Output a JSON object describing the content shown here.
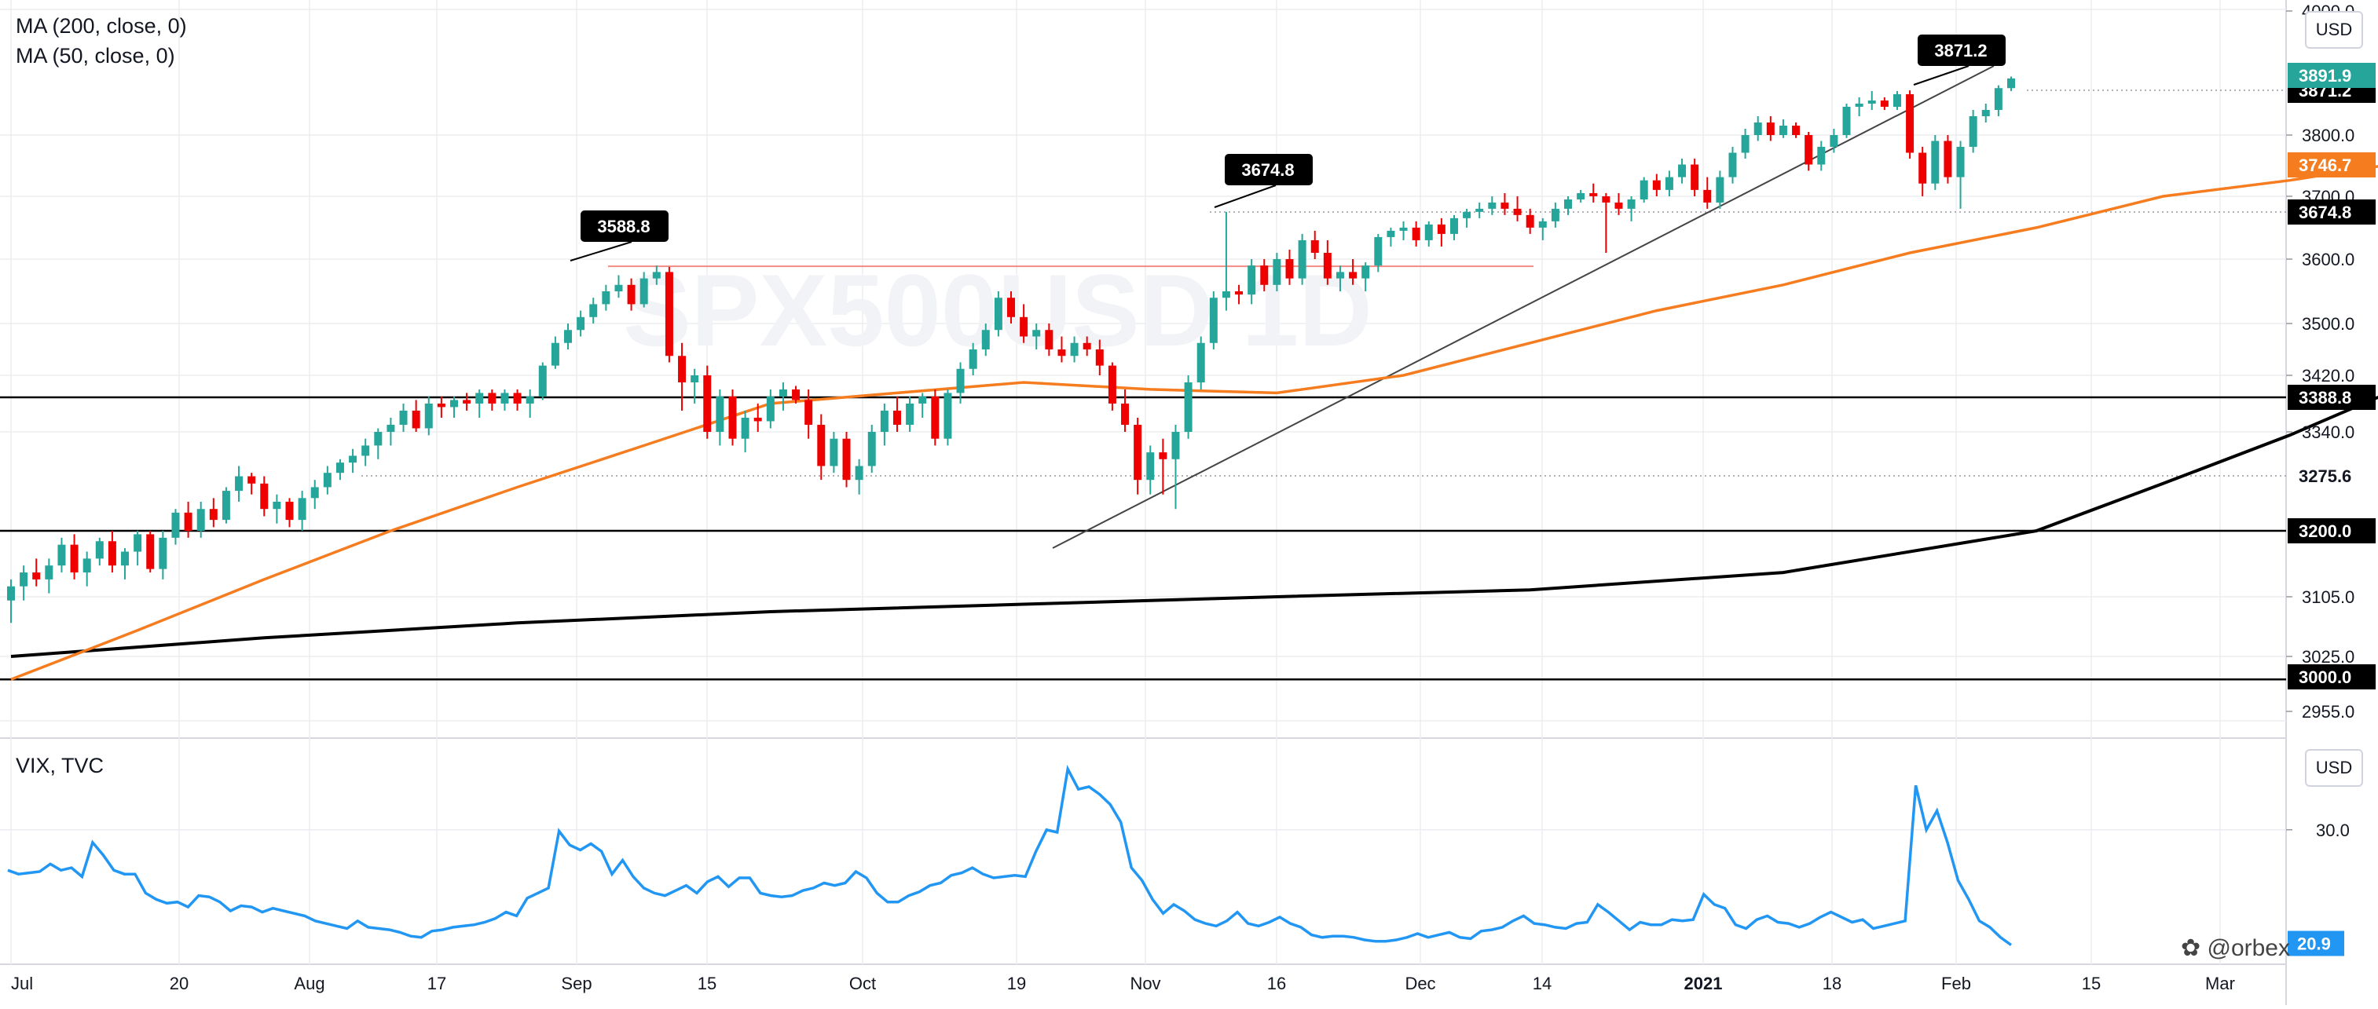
{
  "legend": {
    "ma200": "MA (200, close, 0)",
    "ma50": "MA (50, close, 0)",
    "vix": "VIX, TVC"
  },
  "currency": "USD",
  "watermark": "@orbex",
  "colors": {
    "up": "#26a69a",
    "down": "#ef0000",
    "ma50": "#f57c1f",
    "ma200": "#000000",
    "vix": "#2196f3",
    "grid": "#ecedf1"
  },
  "chart_data": [
    {
      "type": "candlestick",
      "name": "main",
      "x_ticks": [
        "Jul",
        "20",
        "Aug",
        "17",
        "Sep",
        "15",
        "Oct",
        "19",
        "Nov",
        "16",
        "Dec",
        "14",
        "2021",
        "18",
        "Feb",
        "15",
        "Mar"
      ],
      "y_ticks": [
        "4000.0",
        "3871.2",
        "3800.0",
        "3700.0",
        "3600.0",
        "3500.0",
        "3420.0",
        "3340.0",
        "3275.6",
        "3200.0",
        "3105.0",
        "3025.0",
        "2955.0"
      ],
      "ylim": [
        2920,
        4010
      ],
      "ohlc": [
        [
          3100,
          3130,
          3070,
          3120
        ],
        [
          3120,
          3150,
          3100,
          3140
        ],
        [
          3140,
          3160,
          3120,
          3130
        ],
        [
          3130,
          3160,
          3110,
          3150
        ],
        [
          3150,
          3190,
          3140,
          3180
        ],
        [
          3180,
          3195,
          3130,
          3140
        ],
        [
          3140,
          3170,
          3120,
          3160
        ],
        [
          3160,
          3190,
          3150,
          3185
        ],
        [
          3185,
          3200,
          3140,
          3150
        ],
        [
          3150,
          3175,
          3130,
          3170
        ],
        [
          3170,
          3200,
          3150,
          3195
        ],
        [
          3195,
          3200,
          3140,
          3145
        ],
        [
          3145,
          3200,
          3130,
          3190
        ],
        [
          3190,
          3230,
          3180,
          3225
        ],
        [
          3225,
          3240,
          3190,
          3200
        ],
        [
          3200,
          3240,
          3190,
          3230
        ],
        [
          3230,
          3245,
          3205,
          3215
        ],
        [
          3215,
          3260,
          3210,
          3255
        ],
        [
          3255,
          3290,
          3240,
          3275
        ],
        [
          3275,
          3280,
          3250,
          3265
        ],
        [
          3265,
          3275,
          3220,
          3230
        ],
        [
          3230,
          3250,
          3210,
          3240
        ],
        [
          3240,
          3245,
          3205,
          3215
        ],
        [
          3215,
          3255,
          3200,
          3245
        ],
        [
          3245,
          3270,
          3230,
          3260
        ],
        [
          3260,
          3290,
          3250,
          3280
        ],
        [
          3280,
          3300,
          3270,
          3295
        ],
        [
          3295,
          3315,
          3280,
          3305
        ],
        [
          3305,
          3330,
          3290,
          3320
        ],
        [
          3320,
          3345,
          3300,
          3340
        ],
        [
          3340,
          3360,
          3320,
          3350
        ],
        [
          3350,
          3380,
          3340,
          3370
        ],
        [
          3370,
          3385,
          3340,
          3345
        ],
        [
          3345,
          3390,
          3335,
          3380
        ],
        [
          3380,
          3390,
          3360,
          3375
        ],
        [
          3375,
          3390,
          3360,
          3385
        ],
        [
          3385,
          3395,
          3370,
          3380
        ],
        [
          3380,
          3400,
          3360,
          3395
        ],
        [
          3395,
          3400,
          3370,
          3380
        ],
        [
          3380,
          3400,
          3370,
          3395
        ],
        [
          3395,
          3400,
          3370,
          3380
        ],
        [
          3380,
          3400,
          3360,
          3390
        ],
        [
          3390,
          3440,
          3385,
          3435
        ],
        [
          3435,
          3480,
          3430,
          3470
        ],
        [
          3470,
          3500,
          3460,
          3490
        ],
        [
          3490,
          3520,
          3480,
          3510
        ],
        [
          3510,
          3540,
          3500,
          3530
        ],
        [
          3530,
          3560,
          3520,
          3550
        ],
        [
          3550,
          3575,
          3540,
          3560
        ],
        [
          3560,
          3570,
          3520,
          3530
        ],
        [
          3530,
          3580,
          3525,
          3570
        ],
        [
          3570,
          3590,
          3560,
          3580
        ],
        [
          3580,
          3588,
          3440,
          3450
        ],
        [
          3450,
          3470,
          3370,
          3410
        ],
        [
          3410,
          3430,
          3380,
          3420
        ],
        [
          3420,
          3435,
          3330,
          3340
        ],
        [
          3340,
          3400,
          3320,
          3390
        ],
        [
          3390,
          3400,
          3320,
          3330
        ],
        [
          3330,
          3370,
          3310,
          3360
        ],
        [
          3360,
          3380,
          3340,
          3355
        ],
        [
          3355,
          3400,
          3345,
          3390
        ],
        [
          3390,
          3410,
          3370,
          3400
        ],
        [
          3400,
          3405,
          3380,
          3385
        ],
        [
          3385,
          3400,
          3330,
          3350
        ],
        [
          3350,
          3365,
          3270,
          3290
        ],
        [
          3290,
          3340,
          3280,
          3330
        ],
        [
          3330,
          3340,
          3260,
          3270
        ],
        [
          3270,
          3300,
          3250,
          3290
        ],
        [
          3290,
          3350,
          3280,
          3340
        ],
        [
          3340,
          3380,
          3320,
          3370
        ],
        [
          3370,
          3390,
          3340,
          3350
        ],
        [
          3350,
          3390,
          3340,
          3380
        ],
        [
          3380,
          3395,
          3360,
          3390
        ],
        [
          3390,
          3400,
          3320,
          3330
        ],
        [
          3330,
          3400,
          3320,
          3395
        ],
        [
          3395,
          3440,
          3380,
          3430
        ],
        [
          3430,
          3470,
          3420,
          3460
        ],
        [
          3460,
          3500,
          3450,
          3490
        ],
        [
          3490,
          3550,
          3480,
          3540
        ],
        [
          3540,
          3550,
          3500,
          3510
        ],
        [
          3510,
          3530,
          3470,
          3480
        ],
        [
          3480,
          3500,
          3460,
          3490
        ],
        [
          3490,
          3500,
          3450,
          3460
        ],
        [
          3460,
          3480,
          3440,
          3450
        ],
        [
          3450,
          3480,
          3440,
          3470
        ],
        [
          3470,
          3480,
          3450,
          3460
        ],
        [
          3460,
          3475,
          3420,
          3435
        ],
        [
          3435,
          3440,
          3370,
          3380
        ],
        [
          3380,
          3400,
          3340,
          3350
        ],
        [
          3350,
          3360,
          3250,
          3270
        ],
        [
          3270,
          3320,
          3250,
          3310
        ],
        [
          3310,
          3330,
          3250,
          3300
        ],
        [
          3300,
          3350,
          3230,
          3340
        ],
        [
          3340,
          3420,
          3330,
          3410
        ],
        [
          3410,
          3480,
          3400,
          3470
        ],
        [
          3470,
          3550,
          3460,
          3540
        ],
        [
          3540,
          3675,
          3520,
          3550
        ],
        [
          3550,
          3560,
          3530,
          3545
        ],
        [
          3545,
          3600,
          3530,
          3590
        ],
        [
          3590,
          3600,
          3550,
          3560
        ],
        [
          3560,
          3610,
          3550,
          3600
        ],
        [
          3600,
          3615,
          3560,
          3570
        ],
        [
          3570,
          3640,
          3560,
          3630
        ],
        [
          3630,
          3645,
          3600,
          3610
        ],
        [
          3610,
          3630,
          3560,
          3570
        ],
        [
          3570,
          3590,
          3550,
          3580
        ],
        [
          3580,
          3600,
          3560,
          3570
        ],
        [
          3570,
          3595,
          3550,
          3590
        ],
        [
          3590,
          3640,
          3580,
          3635
        ],
        [
          3635,
          3650,
          3620,
          3645
        ],
        [
          3645,
          3660,
          3630,
          3650
        ],
        [
          3650,
          3660,
          3620,
          3630
        ],
        [
          3630,
          3660,
          3620,
          3655
        ],
        [
          3655,
          3665,
          3620,
          3640
        ],
        [
          3640,
          3670,
          3630,
          3665
        ],
        [
          3665,
          3680,
          3650,
          3675
        ],
        [
          3675,
          3690,
          3665,
          3680
        ],
        [
          3680,
          3700,
          3670,
          3690
        ],
        [
          3690,
          3705,
          3670,
          3680
        ],
        [
          3680,
          3700,
          3660,
          3670
        ],
        [
          3670,
          3680,
          3640,
          3650
        ],
        [
          3650,
          3665,
          3630,
          3660
        ],
        [
          3660,
          3690,
          3650,
          3680
        ],
        [
          3680,
          3700,
          3670,
          3695
        ],
        [
          3695,
          3710,
          3690,
          3705
        ],
        [
          3705,
          3720,
          3690,
          3700
        ],
        [
          3700,
          3705,
          3610,
          3690
        ],
        [
          3690,
          3705,
          3670,
          3680
        ],
        [
          3680,
          3700,
          3660,
          3695
        ],
        [
          3695,
          3730,
          3690,
          3725
        ],
        [
          3725,
          3735,
          3700,
          3710
        ],
        [
          3710,
          3740,
          3700,
          3730
        ],
        [
          3730,
          3760,
          3720,
          3750
        ],
        [
          3750,
          3760,
          3700,
          3710
        ],
        [
          3710,
          3730,
          3680,
          3690
        ],
        [
          3690,
          3740,
          3680,
          3730
        ],
        [
          3730,
          3780,
          3720,
          3770
        ],
        [
          3770,
          3810,
          3760,
          3800
        ],
        [
          3800,
          3830,
          3790,
          3820
        ],
        [
          3820,
          3830,
          3790,
          3800
        ],
        [
          3800,
          3825,
          3795,
          3815
        ],
        [
          3815,
          3820,
          3795,
          3800
        ],
        [
          3800,
          3805,
          3740,
          3750
        ],
        [
          3750,
          3790,
          3740,
          3780
        ],
        [
          3780,
          3810,
          3770,
          3800
        ],
        [
          3800,
          3850,
          3795,
          3845
        ],
        [
          3845,
          3860,
          3830,
          3850
        ],
        [
          3850,
          3870,
          3840,
          3855
        ],
        [
          3855,
          3860,
          3840,
          3845
        ],
        [
          3845,
          3870,
          3840,
          3865
        ],
        [
          3865,
          3871,
          3760,
          3770
        ],
        [
          3770,
          3780,
          3700,
          3720
        ],
        [
          3720,
          3800,
          3710,
          3790
        ],
        [
          3790,
          3800,
          3720,
          3730
        ],
        [
          3730,
          3790,
          3680,
          3780
        ],
        [
          3780,
          3840,
          3770,
          3830
        ],
        [
          3830,
          3850,
          3820,
          3840
        ],
        [
          3840,
          3880,
          3830,
          3875
        ],
        [
          3875,
          3895,
          3870,
          3892
        ]
      ],
      "ma50_points": [
        [
          0,
          3000
        ],
        [
          10,
          3060
        ],
        [
          20,
          3130
        ],
        [
          30,
          3200
        ],
        [
          40,
          3260
        ],
        [
          50,
          3320
        ],
        [
          60,
          3380
        ],
        [
          70,
          3395
        ],
        [
          80,
          3410
        ],
        [
          90,
          3400
        ],
        [
          100,
          3395
        ],
        [
          110,
          3420
        ],
        [
          120,
          3470
        ],
        [
          130,
          3520
        ],
        [
          140,
          3560
        ],
        [
          150,
          3610
        ],
        [
          160,
          3650
        ],
        [
          170,
          3700
        ],
        [
          180,
          3725
        ],
        [
          187,
          3747
        ]
      ],
      "ma200_points": [
        [
          0,
          3025
        ],
        [
          20,
          3050
        ],
        [
          40,
          3070
        ],
        [
          60,
          3085
        ],
        [
          80,
          3095
        ],
        [
          100,
          3105
        ],
        [
          120,
          3115
        ],
        [
          140,
          3140
        ],
        [
          160,
          3200
        ],
        [
          170,
          3265
        ],
        [
          180,
          3335
        ],
        [
          187,
          3389
        ]
      ],
      "levels": [
        3000.0,
        3200.0,
        3388.8
      ],
      "dotted_levels": [
        3871.2,
        3674.8,
        3275.6
      ],
      "annotations": [
        "3588.8",
        "3674.8",
        "3871.2"
      ],
      "price_labels": {
        "last": "3891.9",
        "ma50": "3746.7",
        "l3674": "3674.8",
        "l3871": "3871.2",
        "l3388": "3388.8",
        "l3275": "3275.6",
        "l3200": "3200.0",
        "l3000": "3000.0"
      }
    },
    {
      "type": "line",
      "name": "VIX, TVC",
      "y_ticks": [
        "30.0"
      ],
      "last_label": "20.9",
      "values": [
        26.8,
        26.5,
        26.6,
        26.7,
        27.3,
        26.8,
        27.0,
        26.3,
        29.0,
        28.0,
        26.8,
        26.5,
        26.5,
        25.0,
        24.5,
        24.2,
        24.3,
        23.9,
        24.8,
        24.7,
        24.3,
        23.6,
        24.0,
        23.9,
        23.5,
        23.8,
        23.6,
        23.4,
        23.2,
        22.8,
        22.6,
        22.4,
        22.2,
        22.8,
        22.3,
        22.2,
        22.1,
        21.9,
        21.6,
        21.5,
        22.0,
        22.1,
        22.3,
        22.4,
        22.5,
        22.7,
        23.0,
        23.5,
        23.2,
        24.6,
        25.0,
        25.4,
        29.9,
        28.8,
        28.4,
        28.9,
        28.3,
        26.5,
        27.6,
        26.3,
        25.4,
        25.0,
        24.8,
        25.2,
        25.6,
        25.0,
        25.9,
        26.3,
        25.5,
        26.2,
        26.2,
        25.0,
        24.8,
        24.7,
        24.8,
        25.2,
        25.4,
        25.8,
        25.6,
        25.8,
        26.7,
        26.2,
        25.0,
        24.3,
        24.3,
        24.8,
        25.1,
        25.6,
        25.8,
        26.4,
        26.6,
        27.0,
        26.5,
        26.2,
        26.3,
        26.4,
        26.3,
        28.3,
        30.0,
        29.8,
        34.8,
        33.2,
        33.4,
        32.8,
        32.0,
        30.6,
        27.0,
        26.0,
        24.5,
        23.4,
        24.1,
        23.6,
        22.9,
        22.6,
        22.4,
        22.8,
        23.5,
        22.6,
        22.4,
        22.7,
        23.1,
        22.6,
        22.3,
        21.7,
        21.5,
        21.6,
        21.6,
        21.5,
        21.3,
        21.2,
        21.2,
        21.3,
        21.5,
        21.8,
        21.5,
        21.7,
        21.9,
        21.5,
        21.4,
        22.0,
        22.1,
        22.3,
        22.8,
        23.2,
        22.6,
        22.5,
        22.3,
        22.2,
        22.6,
        22.7,
        24.1,
        23.5,
        22.8,
        22.1,
        22.7,
        22.5,
        22.5,
        22.9,
        22.8,
        22.9,
        24.9,
        24.1,
        23.8,
        22.5,
        22.2,
        22.9,
        23.2,
        22.7,
        22.6,
        22.3,
        22.6,
        23.1,
        23.5,
        23.1,
        22.7,
        22.9,
        22.2,
        22.4,
        22.6,
        22.8,
        33.5,
        30.0,
        31.5,
        29.0,
        26.0,
        24.5,
        22.8,
        22.3,
        21.5,
        20.9
      ]
    }
  ]
}
